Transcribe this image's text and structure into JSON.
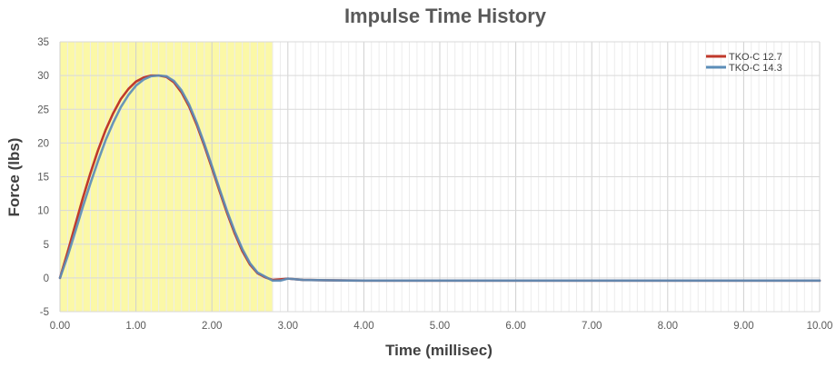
{
  "chart_data": {
    "type": "line",
    "title": "Impulse Time History",
    "xlabel": "Time (millisec)",
    "ylabel": "Force (lbs)",
    "xlim": [
      0,
      10
    ],
    "ylim": [
      -5,
      35
    ],
    "x_ticks": [
      "0.00",
      "1.00",
      "2.00",
      "3.00",
      "4.00",
      "5.00",
      "6.00",
      "7.00",
      "8.00",
      "9.00",
      "10.00"
    ],
    "y_ticks": [
      "35",
      "30",
      "25",
      "20",
      "15",
      "10",
      "5",
      "0",
      "-5"
    ],
    "grid": true,
    "legend_position": "top-right",
    "highlight_region": {
      "x_start": 0,
      "x_end": 2.8,
      "color": "#fbf8a7"
    },
    "series": [
      {
        "name": "TKO-C 12.7",
        "color": "#c0392b",
        "x": [
          0,
          0.1,
          0.2,
          0.3,
          0.4,
          0.5,
          0.6,
          0.7,
          0.8,
          0.9,
          1.0,
          1.1,
          1.2,
          1.3,
          1.4,
          1.5,
          1.6,
          1.7,
          1.8,
          1.9,
          2.0,
          2.1,
          2.2,
          2.3,
          2.4,
          2.5,
          2.6,
          2.7,
          2.8,
          2.9,
          3.0,
          3.2,
          3.5,
          4.0,
          5.0,
          6.0,
          7.0,
          8.0,
          9.0,
          10.0
        ],
        "y": [
          0,
          3.8,
          7.8,
          11.8,
          15.5,
          18.9,
          21.9,
          24.4,
          26.5,
          28.0,
          29.1,
          29.7,
          30.0,
          30.0,
          29.8,
          29.0,
          27.5,
          25.4,
          22.7,
          19.6,
          16.3,
          12.9,
          9.6,
          6.6,
          4.0,
          2.0,
          0.7,
          0.1,
          -0.3,
          -0.2,
          -0.1,
          -0.3,
          -0.35,
          -0.4,
          -0.4,
          -0.4,
          -0.4,
          -0.4,
          -0.4,
          -0.4
        ]
      },
      {
        "name": "TKO-C 14.3",
        "color": "#5b8db8",
        "x": [
          0,
          0.1,
          0.2,
          0.3,
          0.4,
          0.5,
          0.6,
          0.7,
          0.8,
          0.9,
          1.0,
          1.1,
          1.2,
          1.3,
          1.4,
          1.5,
          1.6,
          1.7,
          1.8,
          1.9,
          2.0,
          2.1,
          2.2,
          2.3,
          2.4,
          2.5,
          2.6,
          2.7,
          2.8,
          2.9,
          3.0,
          3.2,
          3.5,
          4.0,
          5.0,
          6.0,
          7.0,
          8.0,
          9.0,
          10.0
        ],
        "y": [
          0,
          3.2,
          6.8,
          10.5,
          14.0,
          17.3,
          20.4,
          23.0,
          25.3,
          27.1,
          28.5,
          29.4,
          29.9,
          30.0,
          29.9,
          29.2,
          27.8,
          25.7,
          23.0,
          19.9,
          16.6,
          13.2,
          9.9,
          6.9,
          4.3,
          2.2,
          0.8,
          0.2,
          -0.4,
          -0.4,
          -0.1,
          -0.3,
          -0.35,
          -0.4,
          -0.4,
          -0.4,
          -0.4,
          -0.4,
          -0.4,
          -0.4
        ]
      }
    ]
  }
}
